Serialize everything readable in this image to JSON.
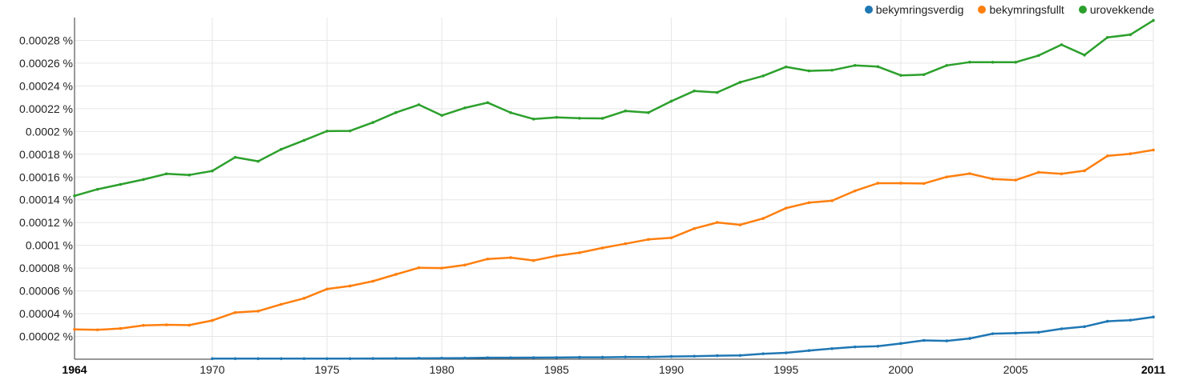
{
  "chart_data": {
    "type": "line",
    "title": "",
    "xlabel": "",
    "ylabel": "",
    "xlim": [
      1964,
      2011
    ],
    "ylim": [
      0,
      0.0003
    ],
    "grid": true,
    "legend_position": "top-right",
    "y_ticks": [
      "0.00002 %",
      "0.00004 %",
      "0.00006 %",
      "0.00008 %",
      "0.0001 %",
      "0.00012 %",
      "0.00014 %",
      "0.00016 %",
      "0.00018 %",
      "0.0002 %",
      "0.00022 %",
      "0.00024 %",
      "0.00026 %",
      "0.00028 %"
    ],
    "x_ticks": [
      {
        "label": "1964",
        "value": 1964,
        "bold": true
      },
      {
        "label": "1970",
        "value": 1970,
        "bold": false
      },
      {
        "label": "1975",
        "value": 1975,
        "bold": false
      },
      {
        "label": "1980",
        "value": 1980,
        "bold": false
      },
      {
        "label": "1985",
        "value": 1985,
        "bold": false
      },
      {
        "label": "1990",
        "value": 1990,
        "bold": false
      },
      {
        "label": "1995",
        "value": 1995,
        "bold": false
      },
      {
        "label": "2000",
        "value": 2000,
        "bold": false
      },
      {
        "label": "2005",
        "value": 2005,
        "bold": false
      },
      {
        "label": "2011",
        "value": 2011,
        "bold": true
      }
    ],
    "series": [
      {
        "name": "bekymringsverdig",
        "color": "#3366cc",
        "x": [
          1970,
          1971,
          1972,
          1973,
          1974,
          1975,
          1976,
          1977,
          1978,
          1979,
          1980,
          1981,
          1982,
          1983,
          1984,
          1985,
          1986,
          1987,
          1988,
          1989,
          1990,
          1991,
          1992,
          1993,
          1994,
          1995,
          1996,
          1997,
          1998,
          1999,
          2000,
          2001,
          2002,
          2003,
          2004,
          2005,
          2006,
          2007,
          2008,
          2009,
          2010,
          2011
        ],
        "values": [
          5e-07,
          5e-07,
          5e-07,
          5e-07,
          5e-07,
          5e-07,
          5e-07,
          6e-07,
          7e-07,
          8e-07,
          9e-07,
          1e-06,
          1.3e-06,
          1.3e-06,
          1.4e-06,
          1.5e-06,
          1.7e-06,
          1.7e-06,
          2e-06,
          1.9e-06,
          2.4e-06,
          2.6e-06,
          3.1e-06,
          3.3e-06,
          4.8e-06,
          5.6e-06,
          7.6e-06,
          9.3e-06,
          1.08e-05,
          1.14e-05,
          1.38e-05,
          1.65e-05,
          1.61e-05,
          1.82e-05,
          2.24e-05,
          2.29e-05,
          2.36e-05,
          2.67e-05,
          2.86e-05,
          3.33e-05,
          3.43e-05,
          3.71e-05
        ]
      },
      {
        "name": "bekymringsfullt",
        "color": "#ff7f0e",
        "x": [
          1964,
          1965,
          1966,
          1967,
          1968,
          1969,
          1970,
          1971,
          1972,
          1973,
          1974,
          1975,
          1976,
          1977,
          1978,
          1979,
          1980,
          1981,
          1982,
          1983,
          1984,
          1985,
          1986,
          1987,
          1988,
          1989,
          1990,
          1991,
          1992,
          1993,
          1994,
          1995,
          1996,
          1997,
          1998,
          1999,
          2000,
          2001,
          2002,
          2003,
          2004,
          2005,
          2006,
          2007,
          2008,
          2009,
          2010,
          2011
        ],
        "values": [
          2.62e-05,
          2.58e-05,
          2.7e-05,
          2.97e-05,
          3.02e-05,
          2.99e-05,
          3.4e-05,
          4.1e-05,
          4.22e-05,
          4.82e-05,
          5.35e-05,
          6.16e-05,
          6.43e-05,
          6.85e-05,
          7.45e-05,
          8.03e-05,
          8e-05,
          8.27e-05,
          8.8e-05,
          8.92e-05,
          8.67e-05,
          9.08e-05,
          9.35e-05,
          9.77e-05,
          0.0001014,
          0.0001052,
          0.0001066,
          0.0001147,
          0.0001201,
          0.000118,
          0.0001236,
          0.0001327,
          0.0001375,
          0.0001392,
          0.0001478,
          0.0001546,
          0.0001546,
          0.0001543,
          0.0001601,
          0.000163,
          0.0001583,
          0.0001573,
          0.0001641,
          0.0001628,
          0.0001655,
          0.0001785,
          0.0001804,
          0.0001837
        ]
      },
      {
        "name": "urovekkende",
        "color": "#2ca02c",
        "x": [
          1964,
          1965,
          1966,
          1967,
          1968,
          1969,
          1970,
          1971,
          1972,
          1973,
          1974,
          1975,
          1976,
          1977,
          1978,
          1979,
          1980,
          1981,
          1982,
          1983,
          1984,
          1985,
          1986,
          1987,
          1988,
          1989,
          1990,
          1991,
          1992,
          1993,
          1994,
          1995,
          1996,
          1997,
          1998,
          1999,
          2000,
          2001,
          2002,
          2003,
          2004,
          2005,
          2006,
          2007,
          2008,
          2009,
          2010,
          2011
        ],
        "values": [
          0.0001435,
          0.0001492,
          0.0001535,
          0.0001578,
          0.0001628,
          0.0001618,
          0.0001653,
          0.0001773,
          0.0001738,
          0.0001843,
          0.0001922,
          0.0002003,
          0.0002005,
          0.0002079,
          0.0002166,
          0.0002235,
          0.0002141,
          0.0002207,
          0.0002253,
          0.0002165,
          0.0002109,
          0.0002124,
          0.0002116,
          0.0002115,
          0.000218,
          0.0002166,
          0.0002266,
          0.0002356,
          0.0002343,
          0.0002432,
          0.0002488,
          0.0002567,
          0.0002532,
          0.0002538,
          0.000258,
          0.0002569,
          0.0002493,
          0.0002499,
          0.000258,
          0.0002609,
          0.0002608,
          0.0002608,
          0.0002667,
          0.0002762,
          0.0002671,
          0.0002826,
          0.000285,
          0.0002975
        ]
      }
    ]
  }
}
